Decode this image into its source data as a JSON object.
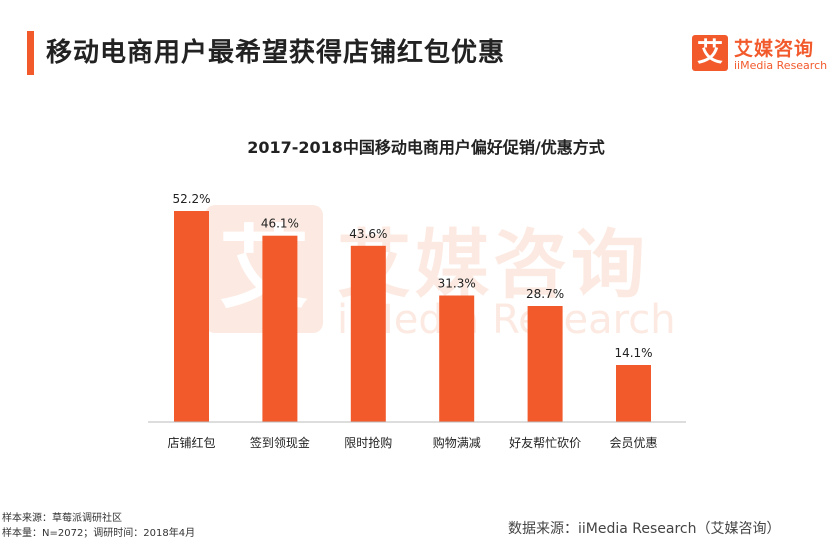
{
  "header": {
    "title": "移动电商用户最希望获得店铺红包优惠"
  },
  "logo": {
    "mark": "艾",
    "name_cn": "艾媒咨询",
    "name_en": "iiMedia Research"
  },
  "watermark": {
    "mark": "艾",
    "name_cn": "艾媒咨询",
    "name_en": "iiMedia Research"
  },
  "chart_data": {
    "type": "bar",
    "title": "2017-2018中国移动电商用户偏好促销/优惠方式",
    "categories": [
      "店铺红包",
      "签到领现金",
      "限时抢购",
      "购物满减",
      "好友帮忙砍价",
      "会员优惠"
    ],
    "values": [
      52.2,
      46.1,
      43.6,
      31.3,
      28.7,
      14.1
    ],
    "value_labels": [
      "52.2%",
      "46.1%",
      "43.6%",
      "31.3%",
      "28.7%",
      "14.1%"
    ],
    "xlabel": "",
    "ylabel": "",
    "ylim": [
      0,
      52.2
    ],
    "grid": false,
    "legend": "none",
    "bar_color": "#f25a2c"
  },
  "footer": {
    "sample_source": "样本来源：草莓派调研社区",
    "sample_size": "样本量：N=2072；调研时间：2018年4月",
    "data_source": "数据来源：iiMedia Research（艾媒咨询）"
  },
  "colors": {
    "accent": "#f25a2c",
    "watermark": "#fbe3d9"
  }
}
